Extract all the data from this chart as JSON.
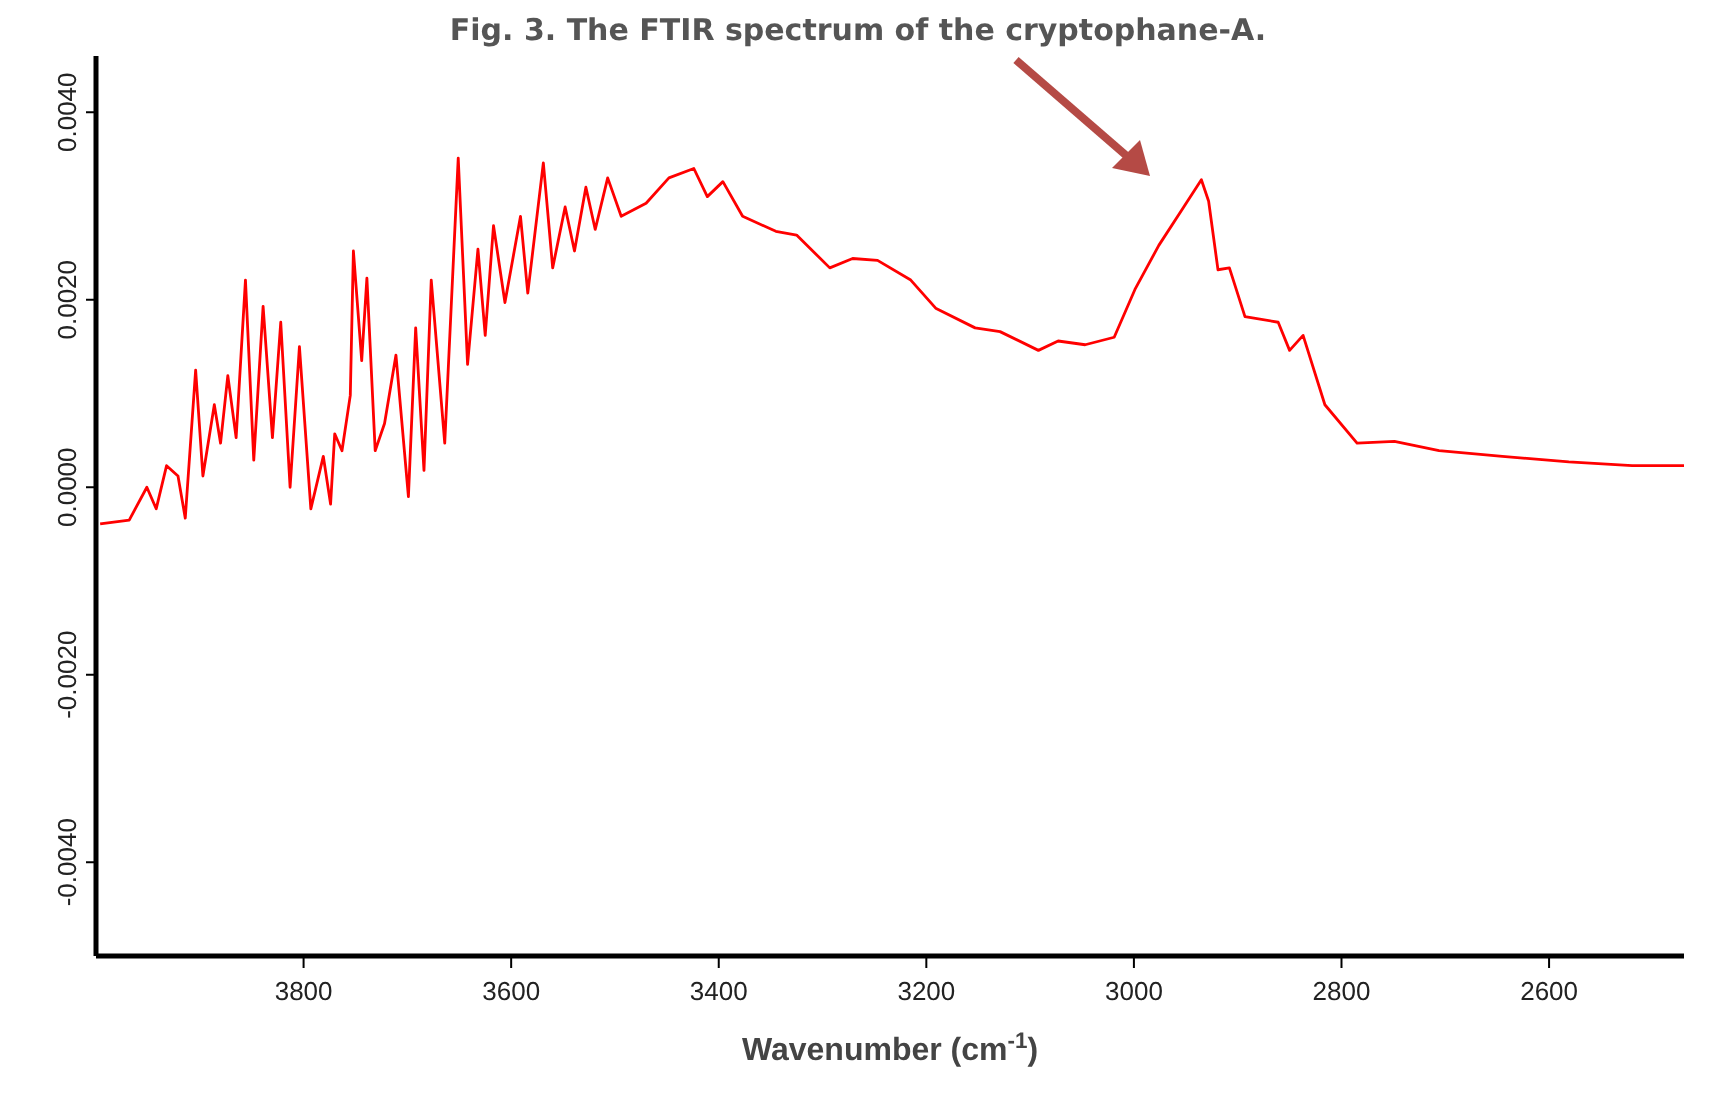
{
  "chart_data": {
    "type": "line",
    "title": "Fig. 3.  The FTIR spectrum of the cryptophane-A.",
    "xlabel": "Wavenumber (cm$^{-1}$)",
    "xlim": [
      4000,
      2470
    ],
    "xticks": [
      3800,
      3600,
      3400,
      3200,
      3000,
      2800,
      2600
    ],
    "ylim": [
      -0.005,
      0.0046
    ],
    "yticks": [
      {
        "value": 0.004,
        "label": "0.0040"
      },
      {
        "value": 0.002,
        "label": "0.0020"
      },
      {
        "value": 0,
        "label": "0.0000"
      },
      {
        "value": -0.002,
        "label": "-0.0020"
      },
      {
        "value": -0.004,
        "label": "-0.0040"
      }
    ],
    "grid": false,
    "marker": "none",
    "line_style": "solid",
    "x": [
      3996,
      3968,
      3951,
      3942,
      3932,
      3921,
      3914,
      3904,
      3897,
      3886,
      3880,
      3873,
      3865,
      3856,
      3848,
      3839,
      3830,
      3822,
      3813,
      3804,
      3793,
      3781,
      3774,
      3770,
      3763,
      3755,
      3752,
      3744,
      3739,
      3731,
      3722,
      3711,
      3699,
      3692,
      3684,
      3677,
      3664,
      3651,
      3642,
      3632,
      3625,
      3617,
      3606,
      3591,
      3584,
      3569,
      3560,
      3548,
      3539,
      3528,
      3519,
      3507,
      3494,
      3470,
      3448,
      3424,
      3411,
      3396,
      3377,
      3345,
      3325,
      3293,
      3271,
      3247,
      3215,
      3191,
      3153,
      3129,
      3092,
      3073,
      3047,
      3019,
      2999,
      2976,
      2952,
      2935,
      2928,
      2919,
      2908,
      2893,
      2861,
      2850,
      2837,
      2816,
      2785,
      2749,
      2706,
      2645,
      2581,
      2520,
      2470
    ],
    "series": [
      {
        "color": "#ff0000",
        "values": [
          -0.00039,
          -0.00035,
          0,
          -0.00023,
          0.00023,
          0.00012,
          -0.00033,
          0.00125,
          0.00012,
          0.00088,
          0.00047,
          0.00119,
          0.00053,
          0.00221,
          0.00029,
          0.00193,
          0.00053,
          0.00176,
          0,
          0.0015,
          -0.00023,
          0.00033,
          -0.00018,
          0.00057,
          0.00039,
          0.00098,
          0.00252,
          0.00135,
          0.00223,
          0.00039,
          0.00068,
          0.00141,
          -0.0001,
          0.0017,
          0.00018,
          0.00221,
          0.00047,
          0.00351,
          0.00131,
          0.00254,
          0.00162,
          0.00279,
          0.00197,
          0.00289,
          0.00207,
          0.00346,
          0.00234,
          0.00299,
          0.00252,
          0.0032,
          0.00275,
          0.0033,
          0.00289,
          0.00303,
          0.0033,
          0.0034,
          0.0031,
          0.00326,
          0.00289,
          0.00273,
          0.00269,
          0.00234,
          0.00244,
          0.00242,
          0.00221,
          0.00191,
          0.0017,
          0.00166,
          0.00146,
          0.00156,
          0.00152,
          0.0016,
          0.00211,
          0.00258,
          0.00299,
          0.00328,
          0.00305,
          0.00232,
          0.00234,
          0.00182,
          0.00176,
          0.00146,
          0.00162,
          0.00088,
          0.00047,
          0.00049,
          0.00039,
          0.00033,
          0.00027,
          0.00023,
          0.00023
        ]
      }
    ]
  }
}
